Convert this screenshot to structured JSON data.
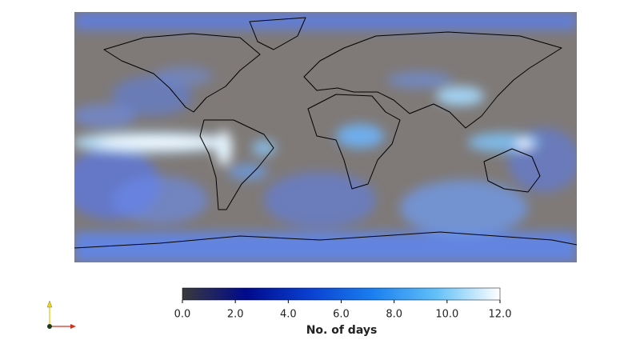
{
  "colorbar": {
    "label": "No. of days",
    "range": [
      0,
      12
    ],
    "ticks": [
      {
        "value": 0,
        "label": "0.0"
      },
      {
        "value": 2,
        "label": "2.0"
      },
      {
        "value": 4,
        "label": "4.0"
      },
      {
        "value": 6,
        "label": "6.0"
      },
      {
        "value": 8,
        "label": "8.0"
      },
      {
        "value": 10,
        "label": "10.0"
      },
      {
        "value": 12,
        "label": "12.0"
      }
    ],
    "colors": [
      "#3a3a3a",
      "#000a8c",
      "#0a3fd0",
      "#1a7ff0",
      "#62c0f8",
      "#ffffff"
    ]
  }
}
